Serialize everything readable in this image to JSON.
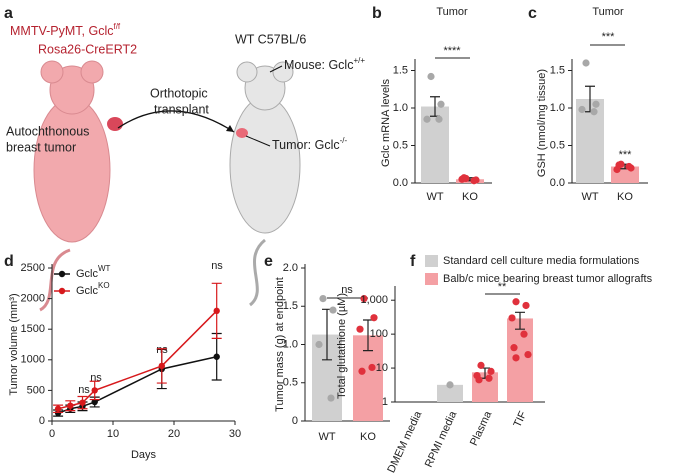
{
  "diagram": {
    "letter": "a",
    "title1": "MMTV-PyMT, Gclc",
    "title1_sup": "f/f",
    "title2": "Rosa26-CreERT2",
    "recipient": "WT C57BL/6",
    "mouse_label": "Mouse: Gclc",
    "mouse_sup": "+/+",
    "arrow_label1": "Orthotopic",
    "arrow_label2": "transplant",
    "tumor_source1": "Autochthonous",
    "tumor_source2": "breast tumor",
    "tumor_label": "Tumor: Gclc",
    "tumor_sup": "-/-"
  },
  "chart_data": [
    {
      "type": "bar",
      "panel": "b",
      "title": "Tumor",
      "ylabel": "Gclc mRNA levels",
      "categories": [
        "WT",
        "KO"
      ],
      "values": [
        1.02,
        0.05
      ],
      "errors": [
        0.13,
        0.02
      ],
      "points": [
        [
          1.42,
          1.05,
          0.85,
          0.85
        ],
        [
          0.06,
          0.04,
          0.05,
          0.03,
          0.07
        ]
      ],
      "colors": [
        "#d0d0d0",
        "#f4a0a4"
      ],
      "point_colors": [
        "#a8a8a8",
        "#e0313c"
      ],
      "ylim": [
        0,
        1.6
      ],
      "yticks": [
        {
          "value": 0,
          "label": "0.0"
        },
        0.5,
        {
          "value": 1,
          "label": "1.0"
        },
        1.5
      ],
      "annotations": [
        "****"
      ]
    },
    {
      "type": "bar",
      "panel": "c",
      "title": "Tumor",
      "ylabel": "GSH (nmol/mg tissue)",
      "categories": [
        "WT",
        "KO"
      ],
      "values": [
        1.12,
        0.22
      ],
      "errors": [
        0.17,
        0.03
      ],
      "points": [
        [
          1.6,
          1.05,
          0.98,
          0.95
        ],
        [
          0.25,
          0.2,
          0.18,
          0.22,
          0.24
        ]
      ],
      "colors": [
        "#d0d0d0",
        "#f4a0a4"
      ],
      "point_colors": [
        "#a8a8a8",
        "#e0313c"
      ],
      "ylim": [
        0,
        1.6
      ],
      "yticks": [
        {
          "value": 0,
          "label": "0.0"
        },
        0.5,
        {
          "value": 1,
          "label": "1.0"
        },
        1.5
      ],
      "annotations": [
        "***",
        "***"
      ]
    },
    {
      "type": "line",
      "panel": "d",
      "xlabel": "Days",
      "ylabel": "Tumor volume (mm³)",
      "x": [
        1,
        3,
        5,
        7,
        18,
        27
      ],
      "series": [
        {
          "name": "Gclc",
          "superscript": "WT",
          "color": "#111111",
          "values": [
            130,
            200,
            240,
            310,
            850,
            1050
          ],
          "errors": [
            50,
            60,
            70,
            80,
            320,
            380
          ]
        },
        {
          "name": "Gclc",
          "superscript": "KO",
          "color": "#d7191c",
          "values": [
            200,
            250,
            300,
            500,
            900,
            1800
          ],
          "errors": [
            60,
            80,
            100,
            150,
            280,
            450
          ]
        }
      ],
      "xlim": [
        0,
        30
      ],
      "xticks": [
        0,
        10,
        20,
        30
      ],
      "ylim": [
        0,
        2500
      ],
      "yticks": [
        0,
        500,
        1000,
        1500,
        2000,
        2500
      ],
      "annotations": [
        "ns",
        "ns",
        "ns",
        "ns"
      ]
    },
    {
      "type": "bar",
      "panel": "e",
      "ylabel": "Tumor mass (g) at endpoint",
      "categories": [
        "WT",
        "KO"
      ],
      "values": [
        1.13,
        1.12
      ],
      "errors": [
        0.33,
        0.2
      ],
      "points": [
        [
          1.6,
          1.45,
          1.0,
          0.3
        ],
        [
          1.6,
          1.35,
          1.2,
          0.7,
          0.65
        ]
      ],
      "colors": [
        "#d0d0d0",
        "#f4a0a4"
      ],
      "point_colors": [
        "#a8a8a8",
        "#e0313c"
      ],
      "ylim": [
        0,
        2
      ],
      "yticks": [
        0,
        0.5,
        {
          "value": 1,
          "label": "1.0"
        },
        1.5,
        {
          "value": 2,
          "label": "2.0"
        }
      ],
      "annotations": [
        "ns"
      ]
    },
    {
      "type": "bar",
      "panel": "f",
      "ylabel": "Total glutathione (µM)",
      "log": true,
      "categories": [
        "DMEM media",
        "RPMI media",
        "Plasma",
        "TIF"
      ],
      "values": [
        null,
        3.2,
        7.5,
        290
      ],
      "errors": [
        null,
        null,
        2.5,
        150
      ],
      "points": [
        [],
        [
          3.2
        ],
        [
          12,
          8,
          6,
          5,
          4.5
        ],
        [
          900,
          700,
          300,
          100,
          40,
          25,
          20
        ]
      ],
      "colors": [
        "#d0d0d0",
        "#d0d0d0",
        "#f4a0a4",
        "#f4a0a4"
      ],
      "point_colors": [
        "#a8a8a8",
        "#a8a8a8",
        "#e0313c",
        "#e0313c"
      ],
      "ylim": [
        1,
        2000
      ],
      "yticks": [
        1,
        10,
        100,
        {
          "value": 1000,
          "label": "1,000"
        }
      ],
      "legend": [
        {
          "label": "Standard cell culture media formulations",
          "color": "#d0d0d0"
        },
        {
          "label": "Balb/c mice bearing breast tumor allografts",
          "color": "#f4a0a4"
        }
      ],
      "annotations": [
        "**"
      ]
    }
  ]
}
